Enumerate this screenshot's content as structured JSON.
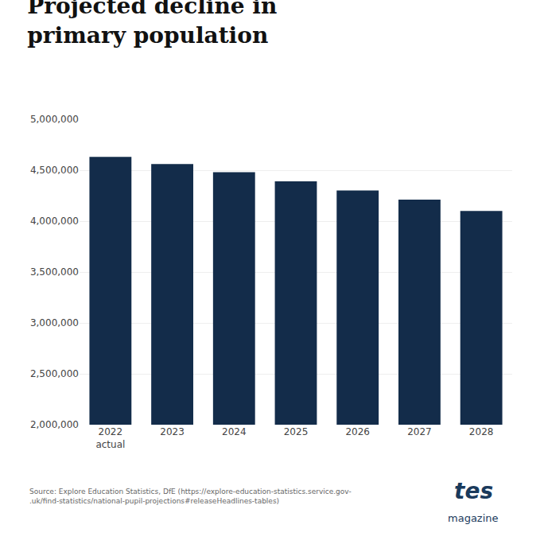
{
  "chart_data": {
    "type": "bar",
    "title": "Projected decline in\nprimary population",
    "categories": [
      "2022\nactual",
      "2023",
      "2024",
      "2025",
      "2026",
      "2027",
      "2028"
    ],
    "values": [
      4630000,
      4560000,
      4480000,
      4390000,
      4300000,
      4210000,
      4100000
    ],
    "color": "#132c4a",
    "ylim": [
      2000000,
      5000000
    ],
    "yticks": [
      {
        "value": 2000000,
        "label": "2,000,000"
      },
      {
        "value": 2500000,
        "label": "2,500,000"
      },
      {
        "value": 3000000,
        "label": "3,000,000"
      },
      {
        "value": 3500000,
        "label": "3,500,000"
      },
      {
        "value": 4000000,
        "label": "4,000,000"
      },
      {
        "value": 4500000,
        "label": "4,500,000"
      },
      {
        "value": 5000000,
        "label": "5,000,000"
      }
    ],
    "grid": true,
    "annotations": [
      "Source: Explore Education Statistics, DfE (https://explore-education-statistics.service.gov-\n.uk/find-statistics/national-pupil-projections#releaseHeadlines-tables)",
      "tes",
      "magazine"
    ]
  }
}
